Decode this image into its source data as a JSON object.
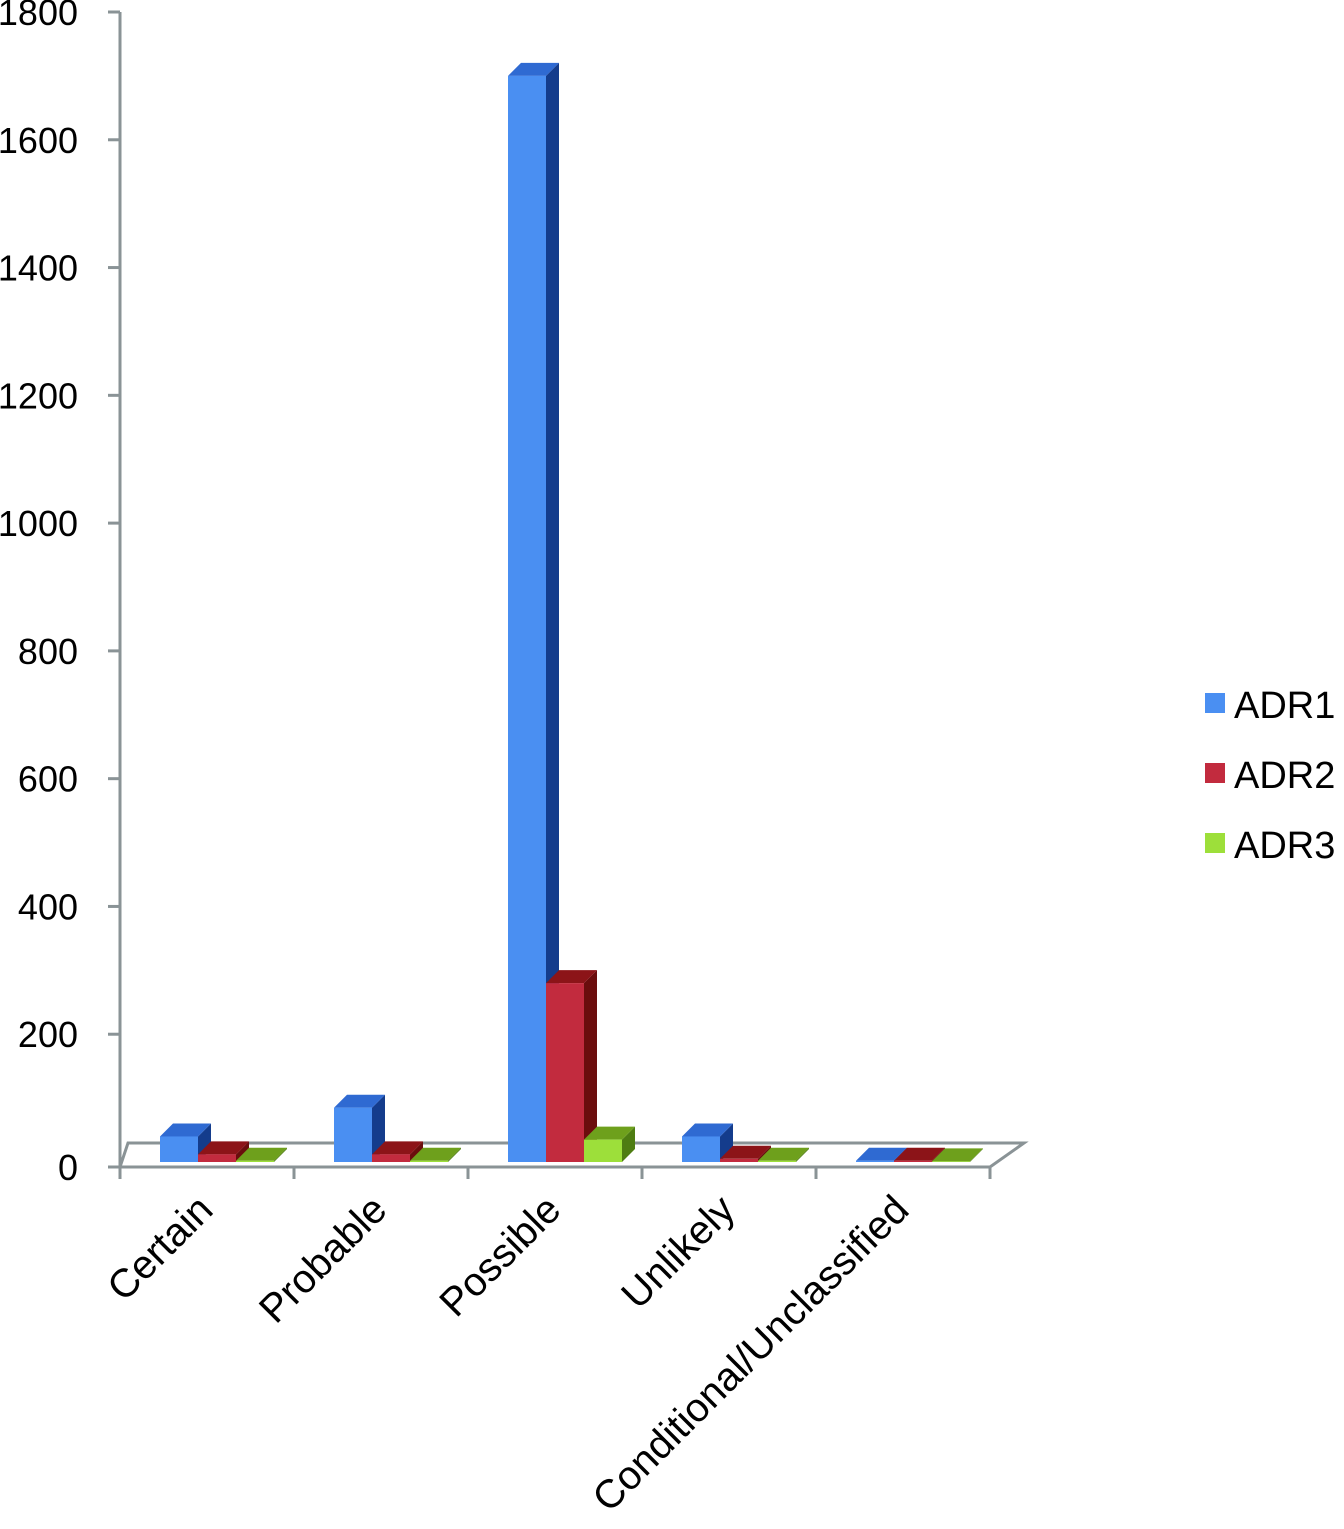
{
  "chart_data": {
    "type": "bar",
    "style": "3d-clustered-column",
    "categories": [
      "Certain",
      "Probable",
      "Possible",
      "Unlikely",
      "Conditional/Unclassified"
    ],
    "series": [
      {
        "name": "ADR1",
        "values": [
          40,
          85,
          1700,
          40,
          2
        ],
        "color": "#4a8ff2",
        "side_color": "#143c8c",
        "top_color": "#2f6ad2"
      },
      {
        "name": "ADR2",
        "values": [
          12,
          12,
          280,
          5,
          2
        ],
        "color": "#c22b3e",
        "side_color": "#6b0d0d",
        "top_color": "#8c1418"
      },
      {
        "name": "ADR3",
        "values": [
          2,
          2,
          35,
          2,
          1
        ],
        "color": "#9ddf3a",
        "side_color": "#4e7d12",
        "top_color": "#6ea01c"
      }
    ],
    "ylim": [
      0,
      1800
    ],
    "yticks": [
      "0",
      "200",
      "400",
      "600",
      "800",
      "1000",
      "1200",
      "1400",
      "1600",
      "1800"
    ],
    "grid": false,
    "legend_position": "right",
    "title": "",
    "xlabel": "",
    "ylabel": ""
  }
}
